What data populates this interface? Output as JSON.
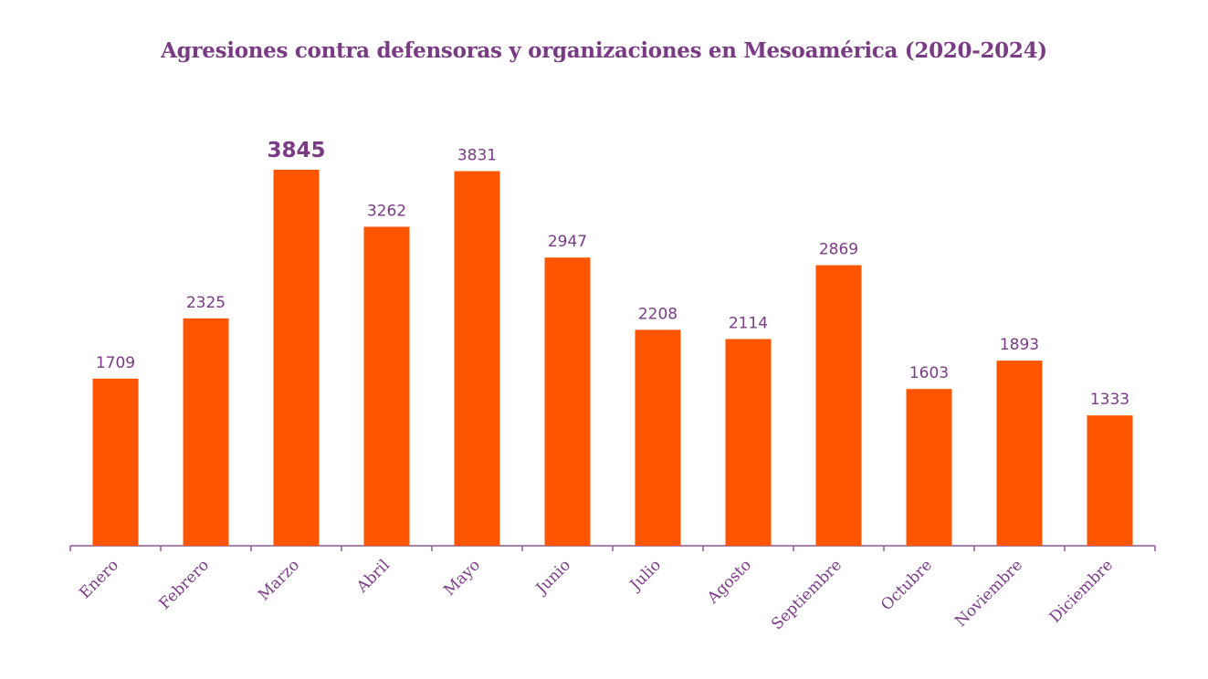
{
  "chart_data": {
    "type": "bar",
    "title": "Agresiones contra defensoras y organizaciones en Mesoamérica (2020-2024)",
    "xlabel": "",
    "ylabel": "",
    "categories": [
      "Enero",
      "Febrero",
      "Marzo",
      "Abril",
      "Mayo",
      "Junio",
      "Julio",
      "Agosto",
      "Septiembre",
      "Octubre",
      "Noviembre",
      "Diciembre"
    ],
    "values": [
      1709,
      2325,
      3845,
      3262,
      3831,
      2947,
      2208,
      2114,
      2869,
      1603,
      1893,
      1333
    ],
    "ylim": [
      0,
      3845
    ],
    "grid": false,
    "highlight_max": true,
    "colors": {
      "bar": "#ff5500",
      "text": "#7a3b85",
      "axis": "#8a5a94"
    }
  }
}
